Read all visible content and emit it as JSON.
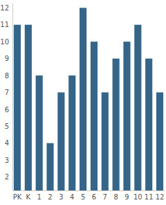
{
  "chart_data": {
    "type": "bar",
    "categories": [
      "PK",
      "K",
      "1",
      "2",
      "3",
      "4",
      "5",
      "6",
      "7",
      "8",
      "9",
      "10",
      "11",
      "12"
    ],
    "values": [
      11,
      11,
      8,
      4,
      7,
      8,
      12,
      10,
      7,
      9,
      10,
      11,
      9,
      7
    ],
    "color": "#36658a",
    "ylim": [
      1.2,
      12.3
    ],
    "yticks": [
      2,
      3,
      4,
      5,
      6,
      7,
      8,
      9,
      10,
      11,
      12
    ],
    "grid": false
  }
}
